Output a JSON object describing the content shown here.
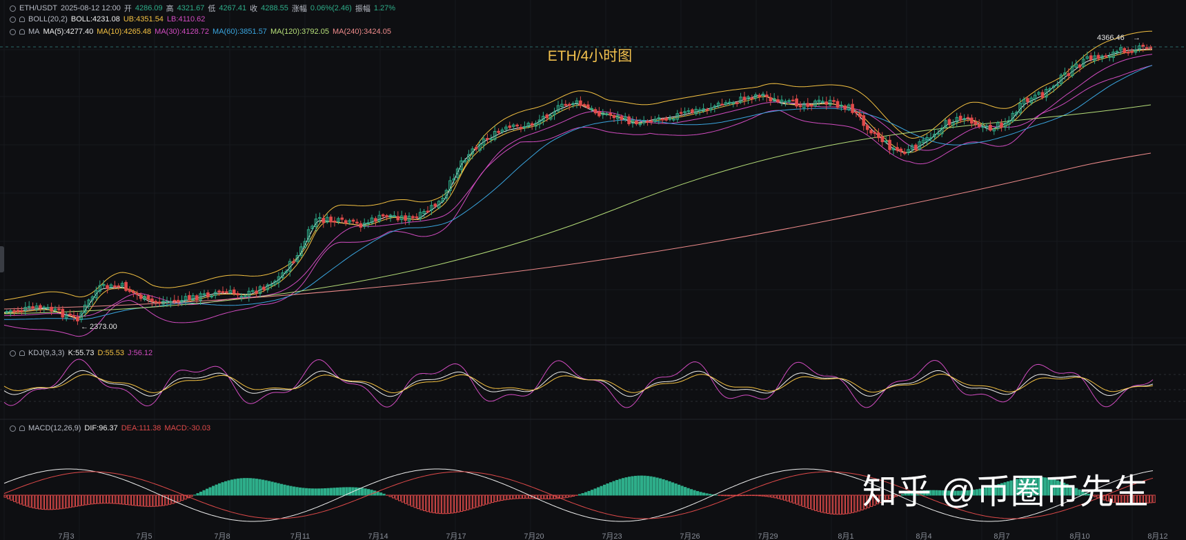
{
  "header": {
    "symbol": "ETH/USDT",
    "datetime": "2025-08-12 12:00",
    "open_label": "开",
    "open": "4286.09",
    "high_label": "高",
    "high": "4321.67",
    "low_label": "低",
    "low": "4267.41",
    "close_label": "收",
    "close": "4288.55",
    "change_label": "涨幅",
    "change": "0.06%(2.46)",
    "amplitude_label": "振幅",
    "amplitude": "1.27%"
  },
  "boll": {
    "name": "BOLL(20,2)",
    "mid": "BOLL:4231.08",
    "ub": "UB:4351.54",
    "lb": "LB:4110.62"
  },
  "ma": {
    "name": "MA",
    "items": [
      {
        "text": "MA(5):4277.40",
        "color": "#f0f0f0"
      },
      {
        "text": "MA(10):4265.48",
        "color": "#f5c242"
      },
      {
        "text": "MA(30):4128.72",
        "color": "#d34cc2"
      },
      {
        "text": "MA(60):3851.57",
        "color": "#3aa6e0"
      },
      {
        "text": "MA(120):3792.05",
        "color": "#b7e07a"
      },
      {
        "text": "MA(240):3424.05",
        "color": "#f08c8c"
      }
    ]
  },
  "kdj": {
    "name": "KDJ(9,3,3)",
    "k": "K:55.73",
    "d": "D:55.53",
    "j": "J:56.12"
  },
  "macd": {
    "name": "MACD(12,26,9)",
    "dif": "DIF:96.37",
    "dea": "DEA:111.38",
    "macd": "MACD:-30.03"
  },
  "overlay_title": "ETH/4小时图",
  "watermark": "知乎 @币圈币先生",
  "markers": {
    "high": "4366.46",
    "low": "2373.00"
  },
  "colors": {
    "up": "#2eae8a",
    "down": "#e04a4a",
    "bg": "#0e0f12",
    "boll_band": "#f5c242",
    "title": "#f2c14e"
  },
  "chart_data": {
    "type": "candlestick",
    "interval": "4h",
    "x_ticks": [
      "7月3",
      "7月5",
      "7月8",
      "7月11",
      "7月14",
      "7月17",
      "7月20",
      "7月23",
      "7月26",
      "7月29",
      "8月1",
      "8月4",
      "8月7",
      "8月10",
      "8月12"
    ],
    "price_series": [
      {
        "x": "7月2",
        "y": 2400
      },
      {
        "x": "7月3",
        "y": 2430
      },
      {
        "x": "7月4",
        "y": 2470
      },
      {
        "x": "7月5",
        "y": 2500
      },
      {
        "x": "7月7",
        "y": 2520
      },
      {
        "x": "7月8",
        "y": 2560
      },
      {
        "x": "7月9",
        "y": 2700
      },
      {
        "x": "7月10",
        "y": 2850
      },
      {
        "x": "7月11",
        "y": 3050
      },
      {
        "x": "7月12",
        "y": 2980
      },
      {
        "x": "7月13",
        "y": 2960
      },
      {
        "x": "7月14",
        "y": 3000
      },
      {
        "x": "7月15",
        "y": 2960
      },
      {
        "x": "7月16",
        "y": 3150
      },
      {
        "x": "7month17",
        "y": 3400
      }
    ],
    "extremes": {
      "high": 4366.46,
      "low": 2373.0
    }
  }
}
